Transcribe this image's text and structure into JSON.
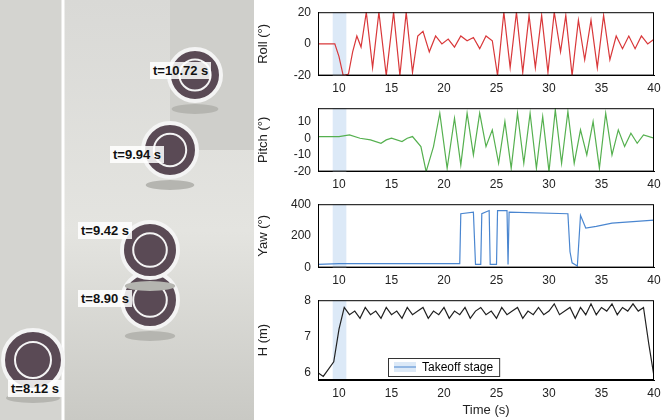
{
  "photo": {
    "labels": [
      "t=10.72 s",
      "t=9.94 s",
      "t=9.42 s",
      "t=8.90 s",
      "t=8.12 s"
    ]
  },
  "chart_data": [
    {
      "type": "line",
      "y_label": "Roll (°)",
      "xlim": [
        8,
        40
      ],
      "xticks": [
        10,
        15,
        20,
        25,
        30,
        35,
        40
      ],
      "ylim": [
        -20,
        20
      ],
      "yticks": [
        -20,
        0,
        20
      ],
      "grid": false,
      "highlight": {
        "x": [
          9.4,
          10.7
        ],
        "color": "#dce9f7"
      },
      "series": [
        {
          "color": "#d9383a",
          "x": [
            8,
            9,
            9.6,
            10,
            10.4,
            10.9,
            11.3,
            11.7,
            12.1,
            12.6,
            13.2,
            13.8,
            14.5,
            15.2,
            15.8,
            16.4,
            17,
            17.5,
            18,
            18.6,
            19.2,
            19.8,
            20.4,
            21,
            21.6,
            22.2,
            22.8,
            23.4,
            24,
            24.6,
            25.1,
            25.7,
            26.3,
            26.9,
            27.5,
            28.1,
            28.7,
            29.3,
            29.9,
            30.5,
            31.1,
            31.6,
            32.2,
            32.8,
            33.4,
            34,
            34.6,
            35.2,
            35.8,
            36.4,
            37,
            37.6,
            38.2,
            38.8,
            39.4,
            40
          ],
          "values": [
            0,
            0,
            0,
            -8,
            -20,
            -19,
            -5,
            5,
            -2,
            20,
            -15,
            20,
            -20,
            20,
            -20,
            20,
            -18,
            5,
            8,
            -5,
            5,
            0,
            3,
            -2,
            5,
            2,
            4,
            -3,
            5,
            2,
            -20,
            20,
            -15,
            20,
            -18,
            18,
            -15,
            18,
            -18,
            20,
            -5,
            18,
            -20,
            15,
            -10,
            15,
            -15,
            18,
            -10,
            5,
            -3,
            5,
            -3,
            5,
            0,
            3
          ]
        }
      ]
    },
    {
      "type": "line",
      "y_label": "Pitch (°)",
      "xlim": [
        8,
        40
      ],
      "xticks": [
        10,
        15,
        20,
        25,
        30,
        35,
        40
      ],
      "ylim": [
        -20,
        18
      ],
      "yticks": [
        -20,
        -10,
        0,
        10
      ],
      "grid": false,
      "highlight": {
        "x": [
          9.4,
          10.7
        ],
        "color": "#dce9f7"
      },
      "series": [
        {
          "color": "#55b04f",
          "x": [
            8,
            10,
            11,
            12,
            13,
            14,
            14.5,
            15,
            16,
            16.5,
            17,
            17.8,
            18.3,
            19,
            19.6,
            20.3,
            21,
            21.6,
            22.2,
            22.8,
            23.4,
            24,
            24.6,
            25.2,
            25.8,
            26.4,
            27,
            27.6,
            28.2,
            28.8,
            29.4,
            30,
            30.6,
            31.2,
            31.8,
            32.4,
            33,
            33.6,
            34.2,
            34.8,
            35.4,
            36,
            36.6,
            37.2,
            37.8,
            38.4,
            39,
            40
          ],
          "values": [
            1,
            1,
            2,
            0,
            -1,
            -3,
            -1,
            0,
            -2,
            0,
            1,
            -5,
            -20,
            -5,
            15,
            -18,
            12,
            -16,
            15,
            -10,
            15,
            -5,
            5,
            -15,
            10,
            -18,
            15,
            -15,
            15,
            -18,
            13,
            -20,
            17,
            -15,
            16,
            -15,
            5,
            -10,
            10,
            -18,
            15,
            -10,
            5,
            -5,
            3,
            -3,
            2,
            0
          ]
        }
      ]
    },
    {
      "type": "line",
      "y_label": "Yaw (°)",
      "xlim": [
        8,
        40
      ],
      "xticks": [
        10,
        15,
        20,
        25,
        30,
        35,
        40
      ],
      "ylim": [
        0,
        400
      ],
      "yticks": [
        0,
        200,
        400
      ],
      "grid": false,
      "highlight": {
        "x": [
          9.4,
          10.7
        ],
        "color": "#dce9f7"
      },
      "series": [
        {
          "color": "#4a86d0",
          "x": [
            8,
            10,
            11,
            21.5,
            21.6,
            22.8,
            23,
            23.5,
            23.6,
            24.3,
            24.4,
            25,
            25.1,
            26,
            26.1,
            26.2,
            31.8,
            32,
            32.2,
            32.7,
            33,
            33.5,
            34.5,
            36,
            38,
            40
          ],
          "values": [
            20,
            25,
            25,
            25,
            340,
            350,
            20,
            20,
            340,
            360,
            20,
            20,
            360,
            360,
            20,
            350,
            340,
            100,
            30,
            10,
            330,
            250,
            260,
            280,
            290,
            300
          ]
        }
      ]
    },
    {
      "type": "line",
      "y_label": "H (m)",
      "x_label": "Time (s)",
      "xlim": [
        8,
        40
      ],
      "xticks": [
        10,
        15,
        20,
        25,
        30,
        35,
        40
      ],
      "ylim": [
        5.8,
        8
      ],
      "yticks": [
        6,
        7,
        8
      ],
      "grid": false,
      "legend": "lower left",
      "highlight": {
        "x": [
          9.4,
          10.7
        ],
        "color": "#dce9f7",
        "label": "Takeoff stage"
      },
      "series": [
        {
          "color": "#222222",
          "x": [
            8,
            8.5,
            9,
            9.5,
            10,
            10.5,
            11,
            11.5,
            12,
            12.5,
            13,
            13.5,
            14,
            14.5,
            15,
            15.5,
            16,
            16.5,
            17,
            17.5,
            18,
            18.5,
            19,
            19.5,
            20,
            20.5,
            21,
            21.5,
            22,
            22.5,
            23,
            23.5,
            24,
            24.5,
            25,
            25.5,
            26,
            26.5,
            27,
            27.5,
            28,
            28.5,
            29,
            29.5,
            30,
            30.5,
            31,
            31.5,
            32,
            32.5,
            33,
            33.5,
            34,
            34.5,
            35,
            35.5,
            36,
            36.5,
            37,
            37.5,
            38,
            38.5,
            39,
            39.5,
            40
          ],
          "values": [
            6.0,
            5.9,
            6.1,
            6.3,
            7.2,
            7.8,
            7.6,
            7.7,
            7.5,
            7.8,
            7.6,
            7.7,
            7.5,
            7.8,
            7.6,
            7.7,
            7.5,
            7.8,
            7.6,
            7.7,
            7.8,
            7.5,
            7.7,
            7.6,
            7.8,
            7.5,
            7.7,
            7.6,
            7.8,
            7.5,
            7.7,
            7.8,
            7.6,
            7.7,
            7.5,
            7.8,
            7.6,
            7.7,
            7.8,
            7.5,
            7.7,
            7.6,
            7.8,
            7.6,
            7.7,
            7.9,
            7.6,
            7.7,
            7.8,
            7.5,
            7.8,
            7.6,
            7.9,
            7.6,
            7.8,
            7.7,
            7.9,
            7.6,
            7.8,
            7.7,
            7.9,
            7.7,
            7.8,
            6.8,
            5.9
          ]
        }
      ]
    }
  ]
}
